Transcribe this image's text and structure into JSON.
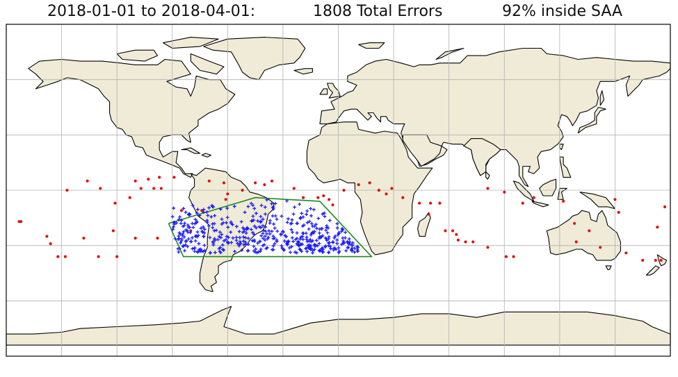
{
  "title": {
    "date_range": "2018-01-01 to 2018-04-01:",
    "total_errors": "1808 Total Errors",
    "saa_fraction": "92% inside SAA"
  },
  "map": {
    "projection": "plate-carree",
    "gridlines_every_deg": 30,
    "ocean_color": "#ffffff",
    "land_color": "#efebd6",
    "coastline_color": "#000000",
    "grid_color": "#b0b0b0"
  },
  "saa_polygon": {
    "color": "#1e8a1e",
    "vertices_lonlat": [
      [
        -92,
        -18
      ],
      [
        -45,
        -4
      ],
      [
        -10,
        -6
      ],
      [
        18,
        -36
      ],
      [
        -84,
        -36
      ],
      [
        -92,
        -18
      ]
    ]
  },
  "error_markers": {
    "inside_saa": {
      "color": "#1a1aff",
      "marker": "plus",
      "count_fraction": 0.92
    },
    "outside_saa": {
      "color": "#e01010",
      "marker": "dot"
    }
  },
  "chart_data": {
    "type": "scatter",
    "xlim": [
      -180,
      180
    ],
    "ylim": [
      -90,
      90
    ],
    "series": [
      {
        "marker": "dot",
        "color": "#e01010",
        "points": [
          [
            -172,
            -17
          ],
          [
            -173,
            -17
          ],
          [
            -158,
            -25
          ],
          [
            -156,
            -29
          ],
          [
            -152,
            -36
          ],
          [
            -148,
            -36
          ],
          [
            -138,
            -26
          ],
          [
            -130,
            -36
          ],
          [
            -120,
            -36
          ],
          [
            -122,
            -22
          ],
          [
            -110,
            -26
          ],
          [
            -98,
            -26
          ],
          [
            -80,
            -22
          ],
          [
            -85,
            -11
          ],
          [
            -74,
            -11
          ],
          [
            -147,
            0
          ],
          [
            -136,
            5
          ],
          [
            -129,
            1
          ],
          [
            -121,
            -7
          ],
          [
            -113,
            -4
          ],
          [
            -107,
            1
          ],
          [
            -96,
            1
          ],
          [
            -110,
            5
          ],
          [
            -103,
            6
          ],
          [
            -97,
            7
          ],
          [
            -89,
            7
          ],
          [
            -100,
            1
          ],
          [
            -70,
            5
          ],
          [
            -62,
            4
          ],
          [
            -60,
            -2
          ],
          [
            -61,
            -5
          ],
          [
            -52,
            0
          ],
          [
            -45,
            4
          ],
          [
            -40,
            3
          ],
          [
            -36,
            5
          ],
          [
            -24,
            1
          ],
          [
            -19,
            -4
          ],
          [
            -11,
            -4
          ],
          [
            -8,
            -3
          ],
          [
            -5,
            -5
          ],
          [
            -3,
            -8
          ],
          [
            3,
            0
          ],
          [
            11,
            3
          ],
          [
            17,
            4
          ],
          [
            22,
            0
          ],
          [
            26,
            -2
          ],
          [
            29,
            1
          ],
          [
            35,
            -4
          ],
          [
            44,
            -7
          ],
          [
            49,
            -13
          ],
          [
            50,
            -7
          ],
          [
            55,
            -7
          ],
          [
            58,
            -22
          ],
          [
            62,
            -22
          ],
          [
            64,
            -24
          ],
          [
            65,
            -27
          ],
          [
            69,
            -28
          ],
          [
            73,
            -28
          ],
          [
            81,
            -31
          ],
          [
            91,
            -36
          ],
          [
            95,
            -36
          ],
          [
            81,
            1
          ],
          [
            90,
            -1
          ],
          [
            100,
            -7
          ],
          [
            106,
            -4
          ],
          [
            122,
            -6
          ],
          [
            128,
            -18
          ],
          [
            136,
            -22
          ],
          [
            129,
            -28
          ],
          [
            142,
            -31
          ],
          [
            156,
            -34
          ],
          [
            165,
            -38
          ],
          [
            172,
            -38
          ],
          [
            175,
            -38
          ],
          [
            177,
            -9
          ],
          [
            173,
            -20
          ],
          [
            150,
            -5
          ],
          [
            152,
            -12
          ]
        ]
      },
      {
        "marker": "plus",
        "color": "#1a1aff",
        "region": {
          "lon": [
            -90,
            20
          ],
          "lat": [
            -36,
            -4
          ]
        }
      }
    ]
  }
}
